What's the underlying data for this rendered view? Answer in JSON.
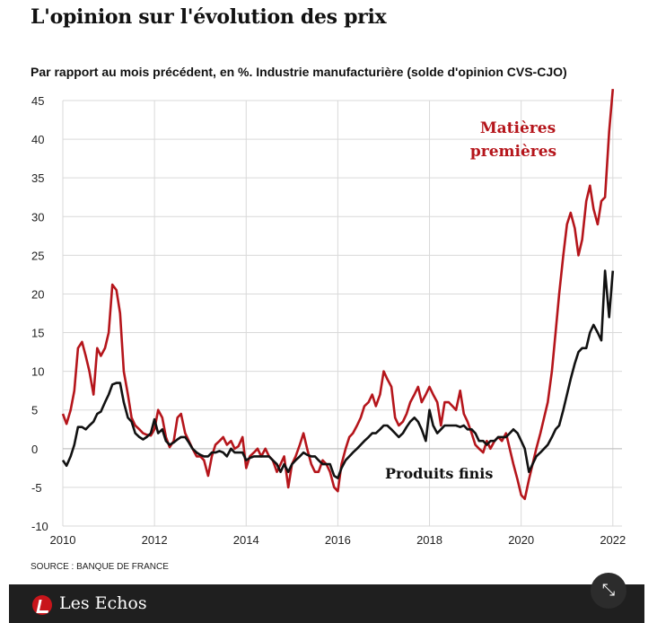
{
  "header": {
    "title": "L'opinion sur l'évolution des prix",
    "subtitle": "Par rapport au mois précédent, en %. Industrie manufacturière (solde d'opinion CVS-CJO)"
  },
  "source": "SOURCE : BANQUE DE FRANCE",
  "footer": {
    "brand": "Les Echos",
    "logo_icon": "les-echos-logo-icon",
    "expand_icon": "expand-icon"
  },
  "colors": {
    "matieres": "#b5151b",
    "produits": "#111111",
    "grid": "#d9d9d9"
  },
  "chart_data": {
    "type": "line",
    "ylim": [
      -10,
      45
    ],
    "y_ticks": [
      "45",
      "40",
      "35",
      "30",
      "25",
      "20",
      "15",
      "10",
      "5",
      "0",
      "-5",
      "-10"
    ],
    "x_ticks": [
      "2010",
      "2012",
      "2014",
      "2016",
      "2018",
      "2020",
      "2022"
    ],
    "grid": true,
    "series": [
      {
        "name": "Matières premières",
        "label_lines": [
          "Matières",
          "premières"
        ],
        "color": "#b5151b",
        "points": [
          [
            2010.0,
            4.5
          ],
          [
            2010.08,
            3.2
          ],
          [
            2010.17,
            5
          ],
          [
            2010.25,
            7.5
          ],
          [
            2010.33,
            13
          ],
          [
            2010.42,
            13.8
          ],
          [
            2010.5,
            12
          ],
          [
            2010.58,
            10
          ],
          [
            2010.67,
            7
          ],
          [
            2010.75,
            13
          ],
          [
            2010.83,
            12
          ],
          [
            2010.92,
            13
          ],
          [
            2011.0,
            15
          ],
          [
            2011.08,
            21.2
          ],
          [
            2011.17,
            20.5
          ],
          [
            2011.25,
            17.5
          ],
          [
            2011.33,
            10
          ],
          [
            2011.42,
            7
          ],
          [
            2011.5,
            4
          ],
          [
            2011.58,
            3
          ],
          [
            2011.67,
            2.5
          ],
          [
            2011.75,
            2
          ],
          [
            2011.83,
            1.8
          ],
          [
            2011.92,
            1.7
          ],
          [
            2012.0,
            2.5
          ],
          [
            2012.08,
            5
          ],
          [
            2012.17,
            4
          ],
          [
            2012.25,
            1.5
          ],
          [
            2012.33,
            0.2
          ],
          [
            2012.42,
            1
          ],
          [
            2012.5,
            4
          ],
          [
            2012.58,
            4.5
          ],
          [
            2012.67,
            2
          ],
          [
            2012.75,
            1
          ],
          [
            2012.83,
            0
          ],
          [
            2012.92,
            -1
          ],
          [
            2013.0,
            -1
          ],
          [
            2013.08,
            -1.5
          ],
          [
            2013.17,
            -3.5
          ],
          [
            2013.25,
            -1
          ],
          [
            2013.33,
            0.5
          ],
          [
            2013.42,
            1
          ],
          [
            2013.5,
            1.5
          ],
          [
            2013.58,
            0.5
          ],
          [
            2013.67,
            1
          ],
          [
            2013.75,
            0
          ],
          [
            2013.83,
            0.3
          ],
          [
            2013.92,
            1.5
          ],
          [
            2014.0,
            -2.5
          ],
          [
            2014.08,
            -1
          ],
          [
            2014.17,
            -0.5
          ],
          [
            2014.25,
            0
          ],
          [
            2014.33,
            -1
          ],
          [
            2014.42,
            0
          ],
          [
            2014.5,
            -1
          ],
          [
            2014.58,
            -1.5
          ],
          [
            2014.67,
            -3
          ],
          [
            2014.75,
            -2
          ],
          [
            2014.83,
            -1
          ],
          [
            2014.92,
            -5
          ],
          [
            2015.0,
            -2
          ],
          [
            2015.08,
            -1
          ],
          [
            2015.17,
            0.5
          ],
          [
            2015.25,
            2
          ],
          [
            2015.33,
            0
          ],
          [
            2015.42,
            -2
          ],
          [
            2015.5,
            -3
          ],
          [
            2015.58,
            -3
          ],
          [
            2015.67,
            -1.5
          ],
          [
            2015.75,
            -2
          ],
          [
            2015.83,
            -3
          ],
          [
            2015.92,
            -5
          ],
          [
            2016.0,
            -5.5
          ],
          [
            2016.08,
            -2
          ],
          [
            2016.17,
            0
          ],
          [
            2016.25,
            1.5
          ],
          [
            2016.33,
            2
          ],
          [
            2016.42,
            3
          ],
          [
            2016.5,
            4
          ],
          [
            2016.58,
            5.5
          ],
          [
            2016.67,
            6
          ],
          [
            2016.75,
            7
          ],
          [
            2016.83,
            5.5
          ],
          [
            2016.92,
            7
          ],
          [
            2017.0,
            10
          ],
          [
            2017.08,
            9
          ],
          [
            2017.17,
            8
          ],
          [
            2017.25,
            4
          ],
          [
            2017.33,
            3
          ],
          [
            2017.42,
            3.5
          ],
          [
            2017.5,
            4.5
          ],
          [
            2017.58,
            6
          ],
          [
            2017.67,
            7
          ],
          [
            2017.75,
            8
          ],
          [
            2017.83,
            6
          ],
          [
            2017.92,
            7
          ],
          [
            2018.0,
            8
          ],
          [
            2018.08,
            7
          ],
          [
            2018.17,
            6
          ],
          [
            2018.25,
            3
          ],
          [
            2018.33,
            6
          ],
          [
            2018.42,
            6
          ],
          [
            2018.5,
            5.5
          ],
          [
            2018.58,
            5
          ],
          [
            2018.67,
            7.5
          ],
          [
            2018.75,
            4.5
          ],
          [
            2018.83,
            3.5
          ],
          [
            2018.92,
            2
          ],
          [
            2019.0,
            0.5
          ],
          [
            2019.08,
            0
          ],
          [
            2019.17,
            -0.5
          ],
          [
            2019.25,
            1
          ],
          [
            2019.33,
            0
          ],
          [
            2019.42,
            1
          ],
          [
            2019.5,
            1.5
          ],
          [
            2019.58,
            1
          ],
          [
            2019.67,
            2
          ],
          [
            2019.75,
            0
          ],
          [
            2019.83,
            -2
          ],
          [
            2019.92,
            -4
          ],
          [
            2020.0,
            -6
          ],
          [
            2020.08,
            -6.5
          ],
          [
            2020.17,
            -4
          ],
          [
            2020.25,
            -2
          ],
          [
            2020.33,
            0
          ],
          [
            2020.42,
            2
          ],
          [
            2020.5,
            4
          ],
          [
            2020.58,
            6
          ],
          [
            2020.67,
            10
          ],
          [
            2020.75,
            15
          ],
          [
            2020.83,
            20
          ],
          [
            2020.92,
            25
          ],
          [
            2021.0,
            29
          ],
          [
            2021.08,
            30.5
          ],
          [
            2021.17,
            28.5
          ],
          [
            2021.25,
            25
          ],
          [
            2021.33,
            27
          ],
          [
            2021.42,
            32
          ],
          [
            2021.5,
            34
          ],
          [
            2021.58,
            31
          ],
          [
            2021.67,
            29
          ],
          [
            2021.75,
            32
          ],
          [
            2021.83,
            32.5
          ],
          [
            2021.92,
            41
          ],
          [
            2022.0,
            47
          ]
        ]
      },
      {
        "name": "Produits finis",
        "label_lines": [
          "Produits finis"
        ],
        "color": "#111111",
        "points": [
          [
            2010.0,
            -1.5
          ],
          [
            2010.08,
            -2.2
          ],
          [
            2010.17,
            -1
          ],
          [
            2010.25,
            0.5
          ],
          [
            2010.33,
            2.8
          ],
          [
            2010.42,
            2.8
          ],
          [
            2010.5,
            2.5
          ],
          [
            2010.58,
            3
          ],
          [
            2010.67,
            3.5
          ],
          [
            2010.75,
            4.5
          ],
          [
            2010.83,
            4.8
          ],
          [
            2010.92,
            6
          ],
          [
            2011.0,
            7
          ],
          [
            2011.08,
            8.3
          ],
          [
            2011.17,
            8.5
          ],
          [
            2011.25,
            8.5
          ],
          [
            2011.33,
            6
          ],
          [
            2011.42,
            4
          ],
          [
            2011.5,
            3.5
          ],
          [
            2011.58,
            2
          ],
          [
            2011.67,
            1.5
          ],
          [
            2011.75,
            1.2
          ],
          [
            2011.83,
            1.5
          ],
          [
            2011.92,
            2
          ],
          [
            2012.0,
            3.8
          ],
          [
            2012.08,
            2
          ],
          [
            2012.17,
            2.5
          ],
          [
            2012.25,
            1
          ],
          [
            2012.33,
            0.5
          ],
          [
            2012.42,
            0.8
          ],
          [
            2012.5,
            1.2
          ],
          [
            2012.58,
            1.5
          ],
          [
            2012.67,
            1.5
          ],
          [
            2012.75,
            0.8
          ],
          [
            2012.83,
            0
          ],
          [
            2012.92,
            -0.5
          ],
          [
            2013.0,
            -0.8
          ],
          [
            2013.08,
            -1
          ],
          [
            2013.17,
            -1
          ],
          [
            2013.25,
            -0.5
          ],
          [
            2013.33,
            -0.5
          ],
          [
            2013.42,
            -0.3
          ],
          [
            2013.5,
            -0.5
          ],
          [
            2013.58,
            -1
          ],
          [
            2013.67,
            0
          ],
          [
            2013.75,
            -0.5
          ],
          [
            2013.83,
            -0.5
          ],
          [
            2013.92,
            -0.5
          ],
          [
            2014.0,
            -1.5
          ],
          [
            2014.08,
            -1.2
          ],
          [
            2014.17,
            -1
          ],
          [
            2014.25,
            -1
          ],
          [
            2014.33,
            -1
          ],
          [
            2014.42,
            -1
          ],
          [
            2014.5,
            -1
          ],
          [
            2014.58,
            -1.5
          ],
          [
            2014.67,
            -2
          ],
          [
            2014.75,
            -3
          ],
          [
            2014.83,
            -2
          ],
          [
            2014.92,
            -3
          ],
          [
            2015.0,
            -2
          ],
          [
            2015.08,
            -1.5
          ],
          [
            2015.17,
            -1
          ],
          [
            2015.25,
            -0.5
          ],
          [
            2015.33,
            -0.8
          ],
          [
            2015.42,
            -1
          ],
          [
            2015.5,
            -1
          ],
          [
            2015.58,
            -1.5
          ],
          [
            2015.67,
            -2
          ],
          [
            2015.75,
            -2
          ],
          [
            2015.83,
            -2
          ],
          [
            2015.92,
            -3.5
          ],
          [
            2016.0,
            -3.8
          ],
          [
            2016.08,
            -2.5
          ],
          [
            2016.17,
            -1.5
          ],
          [
            2016.25,
            -1
          ],
          [
            2016.33,
            -0.5
          ],
          [
            2016.42,
            0
          ],
          [
            2016.5,
            0.5
          ],
          [
            2016.58,
            1
          ],
          [
            2016.67,
            1.5
          ],
          [
            2016.75,
            2
          ],
          [
            2016.83,
            2
          ],
          [
            2016.92,
            2.5
          ],
          [
            2017.0,
            3
          ],
          [
            2017.08,
            3
          ],
          [
            2017.17,
            2.5
          ],
          [
            2017.25,
            2
          ],
          [
            2017.33,
            1.5
          ],
          [
            2017.42,
            2
          ],
          [
            2017.5,
            2.8
          ],
          [
            2017.58,
            3.5
          ],
          [
            2017.67,
            4
          ],
          [
            2017.75,
            3.5
          ],
          [
            2017.83,
            2.5
          ],
          [
            2017.92,
            1
          ],
          [
            2018.0,
            5
          ],
          [
            2018.08,
            3
          ],
          [
            2018.17,
            2
          ],
          [
            2018.25,
            2.5
          ],
          [
            2018.33,
            3
          ],
          [
            2018.42,
            3
          ],
          [
            2018.5,
            3
          ],
          [
            2018.58,
            3
          ],
          [
            2018.67,
            2.8
          ],
          [
            2018.75,
            3
          ],
          [
            2018.83,
            2.5
          ],
          [
            2018.92,
            2.5
          ],
          [
            2019.0,
            2
          ],
          [
            2019.08,
            1
          ],
          [
            2019.17,
            1
          ],
          [
            2019.25,
            0.5
          ],
          [
            2019.33,
            1
          ],
          [
            2019.42,
            1
          ],
          [
            2019.5,
            1.5
          ],
          [
            2019.58,
            1.5
          ],
          [
            2019.67,
            1.5
          ],
          [
            2019.75,
            2
          ],
          [
            2019.83,
            2.5
          ],
          [
            2019.92,
            2
          ],
          [
            2020.0,
            1
          ],
          [
            2020.08,
            0
          ],
          [
            2020.17,
            -3
          ],
          [
            2020.25,
            -2
          ],
          [
            2020.33,
            -1
          ],
          [
            2020.42,
            -0.5
          ],
          [
            2020.5,
            0
          ],
          [
            2020.58,
            0.5
          ],
          [
            2020.67,
            1.5
          ],
          [
            2020.75,
            2.5
          ],
          [
            2020.83,
            3
          ],
          [
            2020.92,
            5
          ],
          [
            2021.0,
            7
          ],
          [
            2021.08,
            9
          ],
          [
            2021.17,
            11
          ],
          [
            2021.25,
            12.5
          ],
          [
            2021.33,
            13
          ],
          [
            2021.42,
            13
          ],
          [
            2021.5,
            15
          ],
          [
            2021.58,
            16
          ],
          [
            2021.67,
            15
          ],
          [
            2021.75,
            14
          ],
          [
            2021.83,
            23
          ],
          [
            2021.92,
            17
          ],
          [
            2022.0,
            23
          ]
        ]
      }
    ]
  }
}
